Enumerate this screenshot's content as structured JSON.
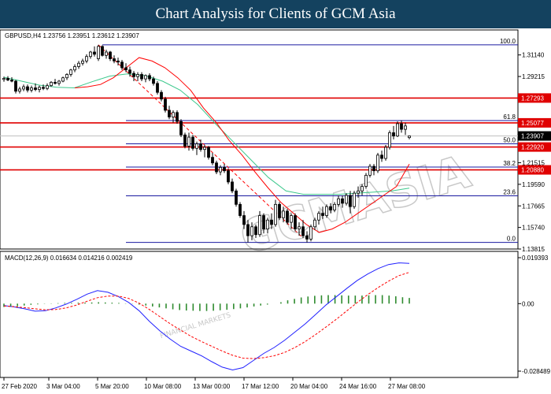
{
  "header": {
    "title": "Chart Analysis for Clients of GCM Asia"
  },
  "main": {
    "symbol_info": "GBPUSD,H4  1.23756 1.23951 1.23612 1.23907",
    "macd_info": "MACD(12,26,9) 0.016634 0.014216 0.002419",
    "watermark": "GCMASIA",
    "watermark_small": "FINANCIAL MARKETS"
  },
  "colors": {
    "header_bg": "#14425f",
    "ma_fast": "#ff0000",
    "ma_slow": "#3cc88c",
    "resistance_line": "#e00000",
    "fib_line": "#1a1aa0",
    "macd_hist": "#2e8b2e",
    "macd_line": "#2020ff",
    "signal_line": "#ff0000"
  },
  "chart_data": {
    "type": "candlestick",
    "symbol": "GBPUSD",
    "timeframe": "H4",
    "ohlc_current": {
      "open": 1.23756,
      "high": 1.23951,
      "low": 1.23612,
      "close": 1.23907
    },
    "ylim": [
      1.13815,
      1.33371
    ],
    "y_ticks": [
      "1.31140",
      "1.29215",
      "1.27293",
      "1.25077",
      "1.23907",
      "1.22920",
      "1.21515",
      "1.20880",
      "1.19590",
      "1.17665",
      "1.15740",
      "1.13815"
    ],
    "x_ticks": [
      "27 Feb 2020",
      "3 Mar 04:00",
      "5 Mar 20:00",
      "10 Mar 08:00",
      "13 Mar 00:00",
      "17 Mar 12:00",
      "20 Mar 04:00",
      "24 Mar 16:00",
      "27 Mar 08:00"
    ],
    "price_tags": [
      {
        "label": "1.27293",
        "value": 1.27293,
        "kind": "resistance"
      },
      {
        "label": "1.25077",
        "value": 1.25077,
        "kind": "resistance"
      },
      {
        "label": "1.23907",
        "value": 1.23907,
        "kind": "current"
      },
      {
        "label": "1.22920",
        "value": 1.2292,
        "kind": "support"
      },
      {
        "label": "1.20880",
        "value": 1.2088,
        "kind": "support"
      }
    ],
    "resistance_levels": [
      1.27293,
      1.25077,
      1.2292,
      1.2088
    ],
    "fibonacci": [
      {
        "label": "100.0",
        "value": 1.3204
      },
      {
        "label": "61.8",
        "value": 1.2528
      },
      {
        "label": "50.0",
        "value": 1.2321
      },
      {
        "label": "38.2",
        "value": 1.2113
      },
      {
        "label": "23.6",
        "value": 1.1856
      },
      {
        "label": "0.0",
        "value": 1.144
      }
    ],
    "ma_fast": [
      1.282,
      1.283,
      1.285,
      1.291,
      1.3,
      1.309,
      1.306,
      1.3,
      1.291,
      1.28,
      1.264,
      1.251,
      1.235,
      1.222,
      1.207,
      1.193,
      1.18,
      1.17,
      1.16,
      1.153,
      1.156,
      1.162,
      1.17,
      1.178,
      1.186,
      1.194,
      1.214
    ],
    "ma_slow": [
      1.2915,
      1.288,
      1.2845,
      1.2825,
      1.282,
      1.2875,
      1.2925,
      1.2945,
      1.293,
      1.288,
      1.28,
      1.267,
      1.25,
      1.234,
      1.218,
      1.202,
      1.19,
      1.187,
      1.187,
      1.187,
      1.188,
      1.189,
      1.19,
      1.1925
    ],
    "candles": [
      [
        1.2895,
        1.292,
        1.2875,
        1.2905
      ],
      [
        1.2905,
        1.2925,
        1.288,
        1.289
      ],
      [
        1.289,
        1.2915,
        1.287,
        1.288
      ],
      [
        1.288,
        1.289,
        1.277,
        1.279
      ],
      [
        1.279,
        1.283,
        1.277,
        1.281
      ],
      [
        1.281,
        1.285,
        1.279,
        1.283
      ],
      [
        1.283,
        1.285,
        1.278,
        1.28
      ],
      [
        1.28,
        1.284,
        1.278,
        1.282
      ],
      [
        1.282,
        1.286,
        1.279,
        1.2805
      ],
      [
        1.2805,
        1.284,
        1.278,
        1.2825
      ],
      [
        1.2825,
        1.285,
        1.28,
        1.2815
      ],
      [
        1.2815,
        1.286,
        1.28,
        1.284
      ],
      [
        1.284,
        1.288,
        1.283,
        1.287
      ],
      [
        1.287,
        1.29,
        1.285,
        1.286
      ],
      [
        1.286,
        1.289,
        1.284,
        1.288
      ],
      [
        1.288,
        1.292,
        1.287,
        1.291
      ],
      [
        1.291,
        1.295,
        1.289,
        1.294
      ],
      [
        1.294,
        1.299,
        1.292,
        1.298
      ],
      [
        1.298,
        1.303,
        1.296,
        1.301
      ],
      [
        1.301,
        1.306,
        1.299,
        1.304
      ],
      [
        1.304,
        1.308,
        1.302,
        1.306
      ],
      [
        1.306,
        1.312,
        1.304,
        1.31
      ],
      [
        1.31,
        1.315,
        1.308,
        1.314
      ],
      [
        1.314,
        1.319,
        1.31,
        1.312
      ],
      [
        1.308,
        1.3204,
        1.306,
        1.319
      ],
      [
        1.319,
        1.32,
        1.31,
        1.311
      ],
      [
        1.311,
        1.316,
        1.308,
        1.314
      ],
      [
        1.314,
        1.315,
        1.306,
        1.308
      ],
      [
        1.308,
        1.311,
        1.304,
        1.306
      ],
      [
        1.306,
        1.309,
        1.302,
        1.305
      ],
      [
        1.305,
        1.307,
        1.298,
        1.3
      ],
      [
        1.3,
        1.304,
        1.296,
        1.298
      ],
      [
        1.298,
        1.301,
        1.292,
        1.295
      ],
      [
        1.295,
        1.297,
        1.288,
        1.292
      ],
      [
        1.292,
        1.296,
        1.288,
        1.294
      ],
      [
        1.294,
        1.296,
        1.288,
        1.29
      ],
      [
        1.29,
        1.294,
        1.287,
        1.293
      ],
      [
        1.293,
        1.295,
        1.288,
        1.29
      ],
      [
        1.29,
        1.292,
        1.284,
        1.286
      ],
      [
        1.286,
        1.288,
        1.276,
        1.278
      ],
      [
        1.278,
        1.28,
        1.27,
        1.272
      ],
      [
        1.272,
        1.274,
        1.26,
        1.262
      ],
      [
        1.262,
        1.266,
        1.254,
        1.256
      ],
      [
        1.256,
        1.262,
        1.251,
        1.26
      ],
      [
        1.26,
        1.262,
        1.25,
        1.252
      ],
      [
        1.252,
        1.254,
        1.238,
        1.24
      ],
      [
        1.24,
        1.242,
        1.228,
        1.23
      ],
      [
        1.23,
        1.242,
        1.226,
        1.238
      ],
      [
        1.238,
        1.24,
        1.226,
        1.228
      ],
      [
        1.228,
        1.234,
        1.222,
        1.232
      ],
      [
        1.232,
        1.236,
        1.225,
        1.227
      ],
      [
        1.227,
        1.231,
        1.22,
        1.229
      ],
      [
        1.229,
        1.23,
        1.218,
        1.22
      ],
      [
        1.22,
        1.224,
        1.213,
        1.215
      ],
      [
        1.215,
        1.217,
        1.205,
        1.207
      ],
      [
        1.207,
        1.213,
        1.204,
        1.211
      ],
      [
        1.211,
        1.214,
        1.206,
        1.208
      ],
      [
        1.208,
        1.21,
        1.196,
        1.198
      ],
      [
        1.198,
        1.201,
        1.188,
        1.19
      ],
      [
        1.19,
        1.192,
        1.176,
        1.178
      ],
      [
        1.178,
        1.18,
        1.166,
        1.168
      ],
      [
        1.168,
        1.172,
        1.156,
        1.16
      ],
      [
        1.16,
        1.164,
        1.144,
        1.15
      ],
      [
        1.15,
        1.162,
        1.146,
        1.158
      ],
      [
        1.158,
        1.16,
        1.148,
        1.151
      ],
      [
        1.151,
        1.172,
        1.149,
        1.168
      ],
      [
        1.168,
        1.17,
        1.152,
        1.156
      ],
      [
        1.156,
        1.166,
        1.152,
        1.164
      ],
      [
        1.164,
        1.17,
        1.156,
        1.16
      ],
      [
        1.16,
        1.182,
        1.158,
        1.178
      ],
      [
        1.178,
        1.18,
        1.164,
        1.166
      ],
      [
        1.166,
        1.176,
        1.162,
        1.172
      ],
      [
        1.172,
        1.174,
        1.16,
        1.162
      ],
      [
        1.162,
        1.17,
        1.156,
        1.168
      ],
      [
        1.168,
        1.17,
        1.154,
        1.156
      ],
      [
        1.156,
        1.162,
        1.15,
        1.158
      ],
      [
        1.158,
        1.164,
        1.148,
        1.15
      ],
      [
        1.15,
        1.154,
        1.144,
        1.147
      ],
      [
        1.147,
        1.16,
        1.145,
        1.158
      ],
      [
        1.158,
        1.166,
        1.155,
        1.164
      ],
      [
        1.164,
        1.172,
        1.16,
        1.17
      ],
      [
        1.17,
        1.176,
        1.165,
        1.168
      ],
      [
        1.168,
        1.178,
        1.166,
        1.176
      ],
      [
        1.176,
        1.179,
        1.17,
        1.173
      ],
      [
        1.173,
        1.18,
        1.171,
        1.178
      ],
      [
        1.178,
        1.186,
        1.176,
        1.183
      ],
      [
        1.183,
        1.186,
        1.175,
        1.179
      ],
      [
        1.179,
        1.188,
        1.177,
        1.186
      ],
      [
        1.186,
        1.19,
        1.17,
        1.176
      ],
      [
        1.176,
        1.19,
        1.174,
        1.188
      ],
      [
        1.188,
        1.194,
        1.184,
        1.19
      ],
      [
        1.19,
        1.196,
        1.186,
        1.194
      ],
      [
        1.194,
        1.206,
        1.192,
        1.204
      ],
      [
        1.204,
        1.214,
        1.202,
        1.212
      ],
      [
        1.212,
        1.214,
        1.204,
        1.208
      ],
      [
        1.208,
        1.224,
        1.206,
        1.222
      ],
      [
        1.222,
        1.226,
        1.216,
        1.219
      ],
      [
        1.219,
        1.231,
        1.217,
        1.229
      ],
      [
        1.229,
        1.244,
        1.227,
        1.242
      ],
      [
        1.242,
        1.248,
        1.236,
        1.239
      ],
      [
        1.239,
        1.252,
        1.238,
        1.25
      ],
      [
        1.25,
        1.253,
        1.242,
        1.245
      ],
      [
        1.245,
        1.251,
        1.24,
        1.248
      ],
      [
        1.2376,
        1.2395,
        1.2361,
        1.2391
      ]
    ],
    "macd": {
      "name": "MACD(12,26,9)",
      "values": [
        0.016634,
        0.014216,
        0.002419
      ],
      "ylim": [
        -0.028489,
        0.019393
      ],
      "y_ticks": [
        "0.019393",
        "0.00",
        "-0.028489"
      ],
      "histogram": [
        -0.0014,
        -0.0013,
        -0.0011,
        -0.0008,
        -0.0005,
        -0.0003,
        -0.0001,
        0.0001,
        0.0002,
        0.0003,
        0.0003,
        0.0004,
        0.0004,
        0.0005,
        0.0006,
        0.0005,
        0.0004,
        0.0003,
        0.0001,
        -0.0001,
        -0.0004,
        -0.0008,
        -0.0012,
        -0.0016,
        -0.002,
        -0.0024,
        -0.0027,
        -0.0029,
        -0.003,
        -0.0031,
        -0.0031,
        -0.003,
        -0.0028,
        -0.0026,
        -0.0023,
        -0.002,
        -0.0016,
        -0.0012,
        -0.0008,
        -0.0004,
        0.0,
        0.0006,
        0.0014,
        0.002,
        0.0026,
        0.003,
        0.0033,
        0.0035,
        0.0036,
        0.0036,
        0.0035,
        0.0034,
        0.0034,
        0.0034,
        0.0035,
        0.0036,
        0.0036,
        0.0034,
        0.0031,
        0.0027,
        0.0024
      ],
      "macd_line": [
        -0.0008,
        -0.0014,
        -0.0022,
        -0.0032,
        -0.003,
        -0.0018,
        -0.0002,
        0.0018,
        0.004,
        0.0055,
        0.0048,
        0.003,
        0.0005,
        -0.003,
        -0.0075,
        -0.0115,
        -0.015,
        -0.018,
        -0.02,
        -0.022,
        -0.0245,
        -0.0268,
        -0.028,
        -0.027,
        -0.024,
        -0.021,
        -0.0185,
        -0.0155,
        -0.012,
        -0.0085,
        -0.0045,
        -0.0005,
        0.003,
        0.0065,
        0.0098,
        0.0125,
        0.0148,
        0.0165,
        0.0172,
        0.017
      ],
      "signal_line": [
        -0.001,
        -0.0013,
        -0.0017,
        -0.0022,
        -0.0026,
        -0.0025,
        -0.0018,
        -0.0006,
        0.001,
        0.0025,
        0.0032,
        0.0032,
        0.0022,
        0.0002,
        -0.0025,
        -0.0055,
        -0.0085,
        -0.0112,
        -0.0138,
        -0.016,
        -0.018,
        -0.02,
        -0.0218,
        -0.023,
        -0.0232,
        -0.0228,
        -0.022,
        -0.0206,
        -0.0185,
        -0.016,
        -0.013,
        -0.0098,
        -0.0065,
        -0.003,
        0.0005,
        0.0038,
        0.0068,
        0.0095,
        0.0118,
        0.0132
      ]
    }
  }
}
